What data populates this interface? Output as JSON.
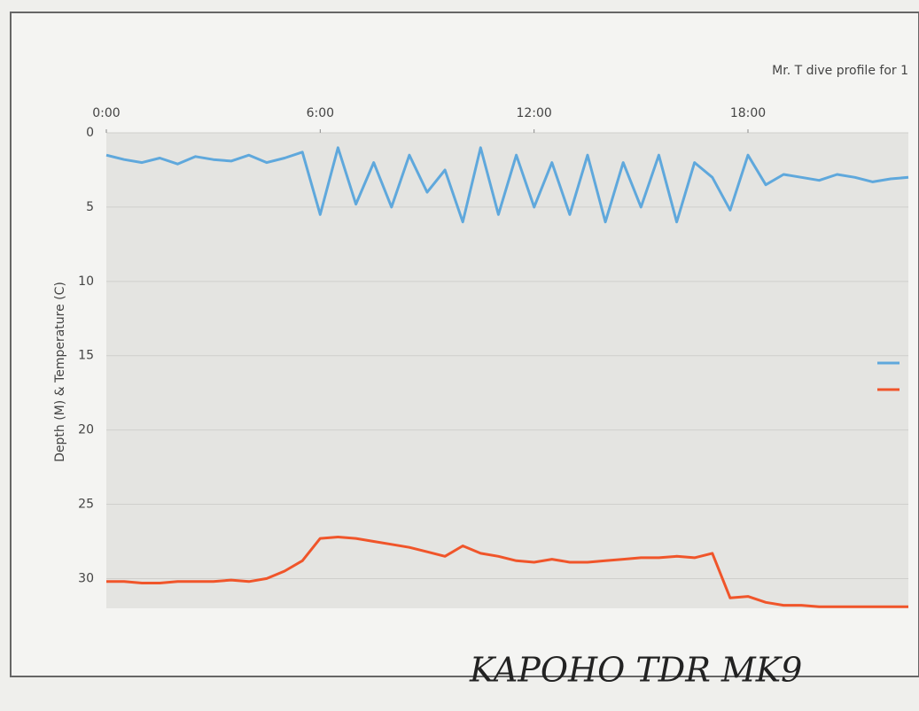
{
  "chart_data": {
    "type": "line",
    "title": "Mr. T dive profile for 1",
    "y_label": "Depth (M) & Temperature (C)",
    "annotation": "KAPOHO   TDR MK9",
    "x": [
      0,
      0.5,
      1,
      1.5,
      2,
      2.5,
      3,
      3.5,
      4,
      4.5,
      5,
      5.5,
      6,
      6.5,
      7,
      7.5,
      8,
      8.5,
      9,
      9.5,
      10,
      10.5,
      11,
      11.5,
      12,
      12.5,
      13,
      13.5,
      14,
      14.5,
      15,
      15.5,
      16,
      16.5,
      17,
      17.5,
      18,
      18.5,
      19,
      19.5,
      20,
      20.5,
      21,
      21.5,
      22,
      22.5
    ],
    "series": [
      {
        "color": "#5fa8dc",
        "values": [
          1.5,
          1.8,
          2,
          1.7,
          2.1,
          1.6,
          1.8,
          1.9,
          1.5,
          2,
          1.7,
          1.3,
          5.5,
          1,
          4.8,
          2,
          5,
          1.5,
          4,
          2.5,
          6,
          1,
          5.5,
          1.5,
          5,
          2,
          5.5,
          1.5,
          6,
          2,
          5,
          1.5,
          6,
          2,
          3,
          5.2,
          1.5,
          3.5,
          2.8,
          3,
          3.2,
          2.8,
          3,
          3.3,
          3.1,
          3
        ]
      },
      {
        "color": "#f0552a",
        "values": [
          30.2,
          30.2,
          30.3,
          30.3,
          30.2,
          30.2,
          30.2,
          30.1,
          30.2,
          30,
          29.5,
          28.8,
          27.3,
          27.2,
          27.3,
          27.5,
          27.7,
          27.9,
          28.2,
          28.5,
          27.8,
          28.3,
          28.5,
          28.8,
          28.9,
          28.7,
          28.9,
          28.9,
          28.8,
          28.7,
          28.6,
          28.6,
          28.5,
          28.6,
          28.3,
          31.3,
          31.2,
          31.6,
          31.8,
          31.8,
          31.9,
          31.9,
          31.9,
          31.9,
          31.9,
          31.9
        ]
      }
    ],
    "xlim": [
      0,
      22.5
    ],
    "xticks": [
      {
        "value": 0,
        "label": "0:00"
      },
      {
        "value": 6,
        "label": "6:00"
      },
      {
        "value": 12,
        "label": "12:00"
      },
      {
        "value": 18,
        "label": "18:00"
      }
    ],
    "ylim": [
      0,
      32
    ],
    "yticks": [
      0,
      5,
      10,
      15,
      20,
      25,
      30
    ],
    "y_inverted": true,
    "grid": true,
    "legend": "right"
  }
}
